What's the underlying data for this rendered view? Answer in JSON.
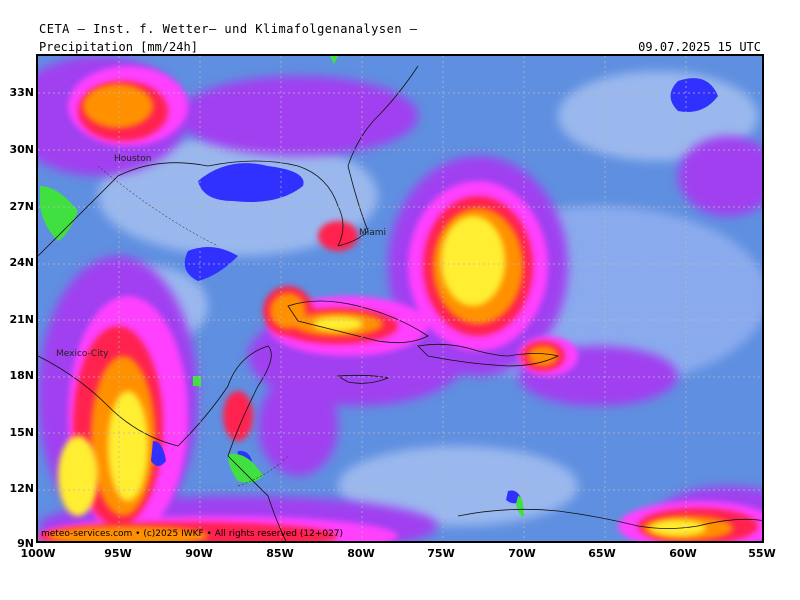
{
  "header": {
    "title": "CETA – Inst. f. Wetter– und Klimafolgenanalysen –"
  },
  "map": {
    "variable_label": "Precipitation [mm/24h]",
    "valid_time": "09.07.2025 15 UTC",
    "cities": [
      "Houston",
      "Miami",
      "Mexico-City"
    ],
    "footer": "meteo-services.com • (c)2025 IWKF • All rights reserved (12+027)",
    "lat_labels": [
      "33N",
      "30N",
      "27N",
      "24N",
      "21N",
      "18N",
      "15N",
      "12N",
      "9N"
    ],
    "lon_labels": [
      "100W",
      "95W",
      "90W",
      "85W",
      "80W",
      "75W",
      "70W",
      "65W",
      "60W",
      "55W"
    ],
    "colors": {
      "background_rain": "#5f8fe0",
      "light": "#9ab8ee",
      "violet": "#a040f0",
      "magenta": "#ff40ff",
      "red": "#ff2050",
      "orange": "#ff9000",
      "yellow": "#ffee30",
      "blue_dark": "#3030ff",
      "green": "#40e040"
    }
  }
}
